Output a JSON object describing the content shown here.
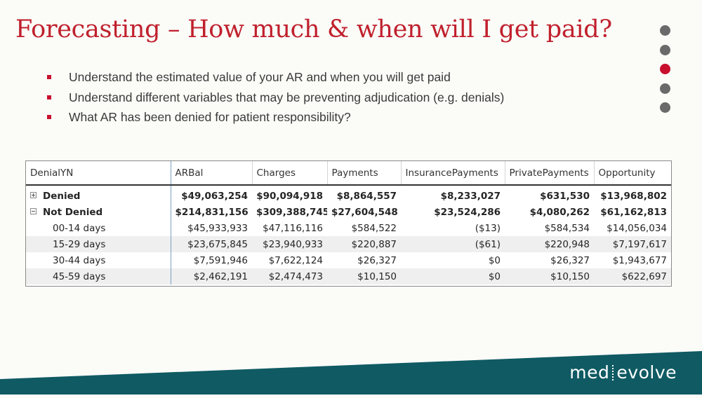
{
  "title": "Forecasting – How much & when will I get paid?",
  "bullets": [
    "Understand the estimated value of your AR and when you will get paid",
    "Understand different variables that may be preventing adjudication (e.g. denials)",
    "What AR has been denied for patient responsibility?"
  ],
  "nav_dots": {
    "count": 5,
    "active_index": 2
  },
  "table": {
    "headers": [
      "DenialYN",
      "ARBal",
      "Charges",
      "Payments",
      "InsurancePayments",
      "PrivatePayments",
      "Opportunity"
    ],
    "rows": [
      {
        "label": "Denied",
        "expander": "+",
        "cells": [
          "$49,063,254",
          "$90,094,918",
          "$8,864,557",
          "$8,233,027",
          "$631,530",
          "$13,968,802"
        ]
      },
      {
        "label": "Not Denied",
        "expander": "-",
        "cells": [
          "$214,831,156",
          "$309,388,745",
          "$27,604,548",
          "$23,524,286",
          "$4,080,262",
          "$61,162,813"
        ]
      },
      {
        "label": "00-14 days",
        "cells": [
          "$45,933,933",
          "$47,116,116",
          "$584,522",
          "($13)",
          "$584,534",
          "$14,056,034"
        ]
      },
      {
        "label": "15-29 days",
        "cells": [
          "$23,675,845",
          "$23,940,933",
          "$220,887",
          "($61)",
          "$220,948",
          "$7,197,617"
        ]
      },
      {
        "label": "30-44 days",
        "cells": [
          "$7,591,946",
          "$7,622,124",
          "$26,327",
          "$0",
          "$26,327",
          "$1,943,677"
        ]
      },
      {
        "label": "45-59 days",
        "cells": [
          "$2,462,191",
          "$2,474,473",
          "$10,150",
          "$0",
          "$10,150",
          "$622,697"
        ]
      }
    ]
  },
  "logo": {
    "left": "med",
    "right": "evolve"
  },
  "colors": {
    "accent": "#c8102e",
    "footer": "#0f5a63",
    "dot": "#6a6a6a"
  }
}
